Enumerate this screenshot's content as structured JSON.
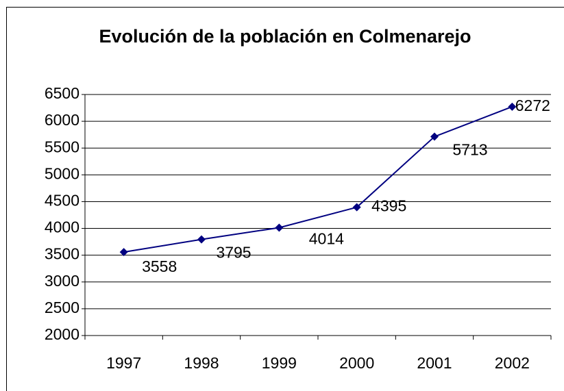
{
  "chart_data": {
    "type": "line",
    "title": "Evolución de la población en Colmenarejo",
    "categories": [
      "1997",
      "1998",
      "1999",
      "2000",
      "2001",
      "2002"
    ],
    "values": [
      3558,
      3795,
      4014,
      4395,
      5713,
      6272
    ],
    "color": "#000080",
    "ylim": [
      2000,
      6500
    ],
    "yticks": [
      2000,
      2500,
      3000,
      3500,
      4000,
      4500,
      5000,
      5500,
      6000,
      6500
    ],
    "grid": true
  }
}
